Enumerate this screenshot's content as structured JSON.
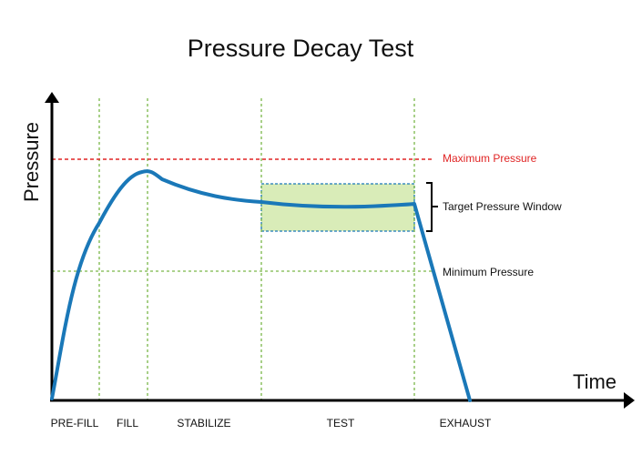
{
  "title": "Pressure Decay Test",
  "axes": {
    "x_label": "Time",
    "y_label": "Pressure"
  },
  "phases": [
    "PRE-FILL",
    "FILL",
    "STABILIZE",
    "TEST",
    "EXHAUST"
  ],
  "annotations": {
    "max_pressure": "Maximum Pressure",
    "target_window": "Target Pressure Window",
    "min_pressure": "Minimum Pressure"
  },
  "colors": {
    "curve": "#1a78b8",
    "max_line": "#e02424",
    "phase_lines": "#7ab648",
    "window_fill": "#d9ecb8",
    "window_border": "#1a78b8",
    "axis": "#000000"
  }
}
